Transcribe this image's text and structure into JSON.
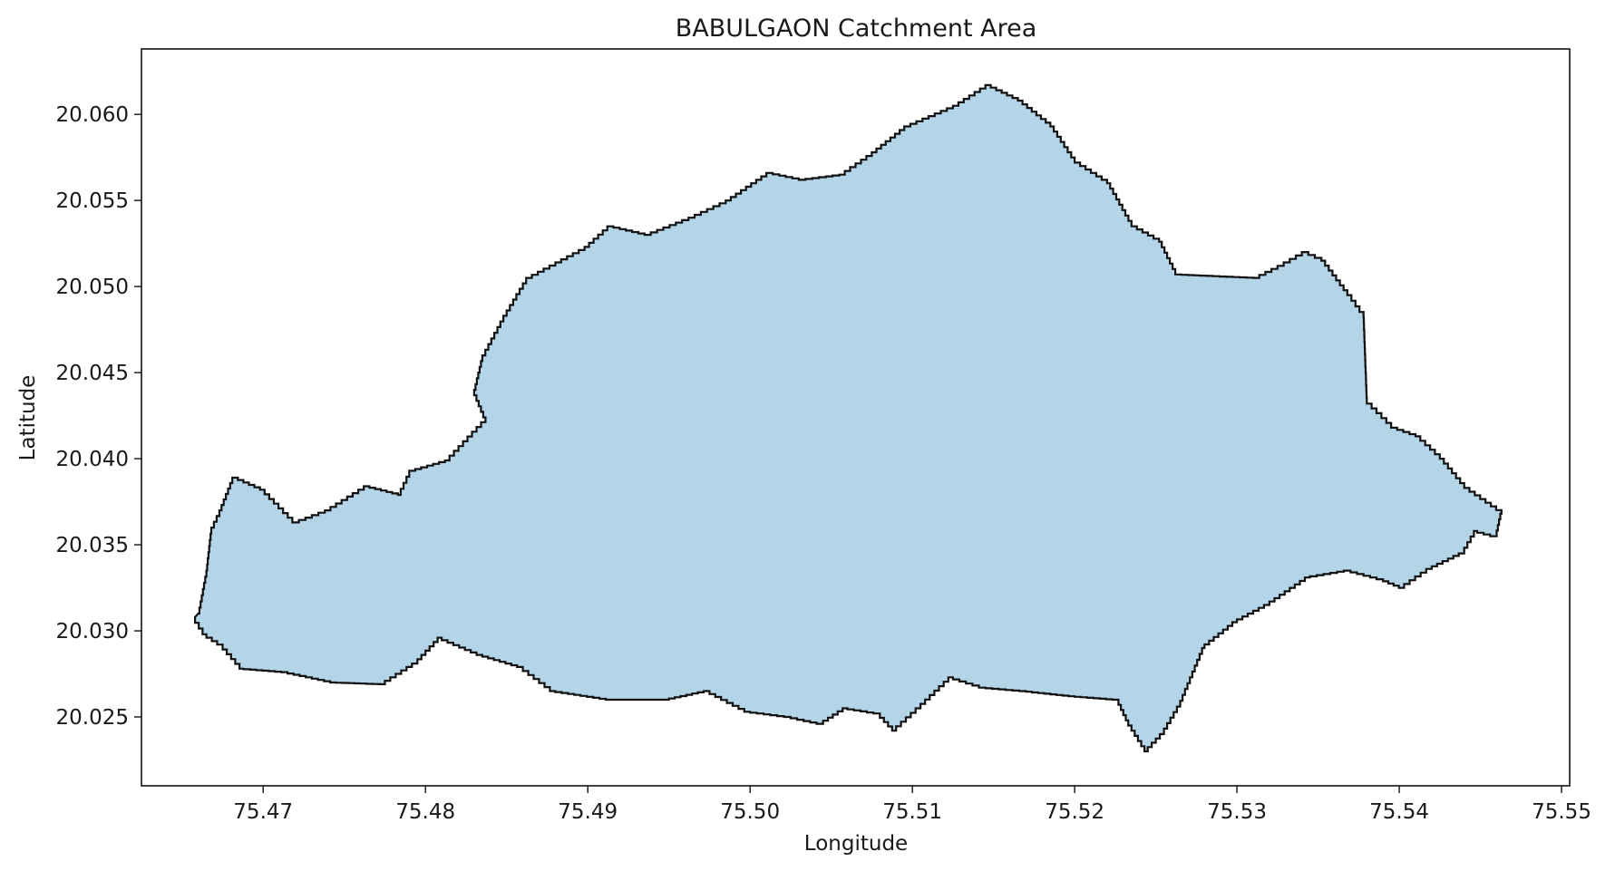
{
  "chart_data": {
    "type": "area",
    "title": "BABULGAON Catchment Area",
    "xlabel": "Longitude",
    "ylabel": "Latitude",
    "xlim": [
      75.4625,
      75.5505
    ],
    "ylim": [
      20.021,
      20.0638
    ],
    "xticks": [
      "75.47",
      "75.48",
      "75.49",
      "75.50",
      "75.51",
      "75.52",
      "75.53",
      "75.54",
      "75.55"
    ],
    "yticks": [
      "20.025",
      "20.030",
      "20.035",
      "20.040",
      "20.045",
      "20.050",
      "20.055",
      "20.060"
    ],
    "grid": false,
    "fill_color": "#b4d4e8",
    "edge_color": "#111111",
    "series": [
      {
        "boundary": [
          [
            75.466,
            20.031
          ],
          [
            75.4665,
            20.0335
          ],
          [
            75.4668,
            20.036
          ],
          [
            75.4673,
            20.037
          ],
          [
            75.4681,
            20.0389
          ],
          [
            75.4698,
            20.0382
          ],
          [
            75.4718,
            20.0363
          ],
          [
            75.4738,
            20.037
          ],
          [
            75.4762,
            20.0384
          ],
          [
            75.4783,
            20.0379
          ],
          [
            75.479,
            20.0393
          ],
          [
            75.4812,
            20.0399
          ],
          [
            75.4837,
            20.0424
          ],
          [
            75.483,
            20.044
          ],
          [
            75.4835,
            20.046
          ],
          [
            75.4848,
            20.0483
          ],
          [
            75.4862,
            20.0505
          ],
          [
            75.488,
            20.0514
          ],
          [
            75.4898,
            20.0523
          ],
          [
            75.4912,
            20.0535
          ],
          [
            75.4935,
            20.053
          ],
          [
            75.4962,
            20.054
          ],
          [
            75.4985,
            20.055
          ],
          [
            75.501,
            20.0566
          ],
          [
            75.503,
            20.0562
          ],
          [
            75.5055,
            20.0565
          ],
          [
            75.5075,
            20.0578
          ],
          [
            75.5095,
            20.0593
          ],
          [
            75.5125,
            20.0605
          ],
          [
            75.5145,
            20.0617
          ],
          [
            75.5165,
            20.0608
          ],
          [
            75.5185,
            20.0593
          ],
          [
            75.52,
            20.0572
          ],
          [
            75.522,
            20.056
          ],
          [
            75.5235,
            20.0535
          ],
          [
            75.5252,
            20.0526
          ],
          [
            75.5262,
            20.0507
          ],
          [
            75.5285,
            20.0506
          ],
          [
            75.531,
            20.0505
          ],
          [
            75.5325,
            20.0512
          ],
          [
            75.534,
            20.052
          ],
          [
            75.5352,
            20.0515
          ],
          [
            75.5368,
            20.0495
          ],
          [
            75.5378,
            20.0482
          ],
          [
            75.538,
            20.0432
          ],
          [
            75.5395,
            20.0418
          ],
          [
            75.541,
            20.0413
          ],
          [
            75.5425,
            20.04
          ],
          [
            75.544,
            20.0383
          ],
          [
            75.5463,
            20.0368
          ],
          [
            75.546,
            20.0355
          ],
          [
            75.5448,
            20.0358
          ],
          [
            75.544,
            20.0345
          ],
          [
            75.542,
            20.0336
          ],
          [
            75.5403,
            20.0325
          ],
          [
            75.539,
            20.033
          ],
          [
            75.537,
            20.0335
          ],
          [
            75.5345,
            20.0331
          ],
          [
            75.532,
            20.0315
          ],
          [
            75.53,
            20.0305
          ],
          [
            75.528,
            20.029
          ],
          [
            75.5265,
            20.0256
          ],
          [
            75.5255,
            20.024
          ],
          [
            75.5245,
            20.023
          ],
          [
            75.5233,
            20.0248
          ],
          [
            75.5227,
            20.026
          ],
          [
            75.52,
            20.0262
          ],
          [
            75.517,
            20.0265
          ],
          [
            75.5145,
            20.0267
          ],
          [
            75.5125,
            20.0273
          ],
          [
            75.5105,
            20.0255
          ],
          [
            75.509,
            20.0242
          ],
          [
            75.508,
            20.0252
          ],
          [
            75.506,
            20.0255
          ],
          [
            75.5045,
            20.0246
          ],
          [
            75.5025,
            20.025
          ],
          [
            75.5,
            20.0253
          ],
          [
            75.4975,
            20.0265
          ],
          [
            75.495,
            20.026
          ],
          [
            75.4915,
            20.026
          ],
          [
            75.488,
            20.0265
          ],
          [
            75.486,
            20.0279
          ],
          [
            75.4835,
            20.0286
          ],
          [
            75.481,
            20.0296
          ],
          [
            75.4795,
            20.0281
          ],
          [
            75.4775,
            20.0269
          ],
          [
            75.4745,
            20.027
          ],
          [
            75.4715,
            20.0276
          ],
          [
            75.4688,
            20.0278
          ],
          [
            75.4675,
            20.0292
          ],
          [
            75.4665,
            20.0298
          ],
          [
            75.4658,
            20.0308
          ]
        ]
      }
    ]
  }
}
